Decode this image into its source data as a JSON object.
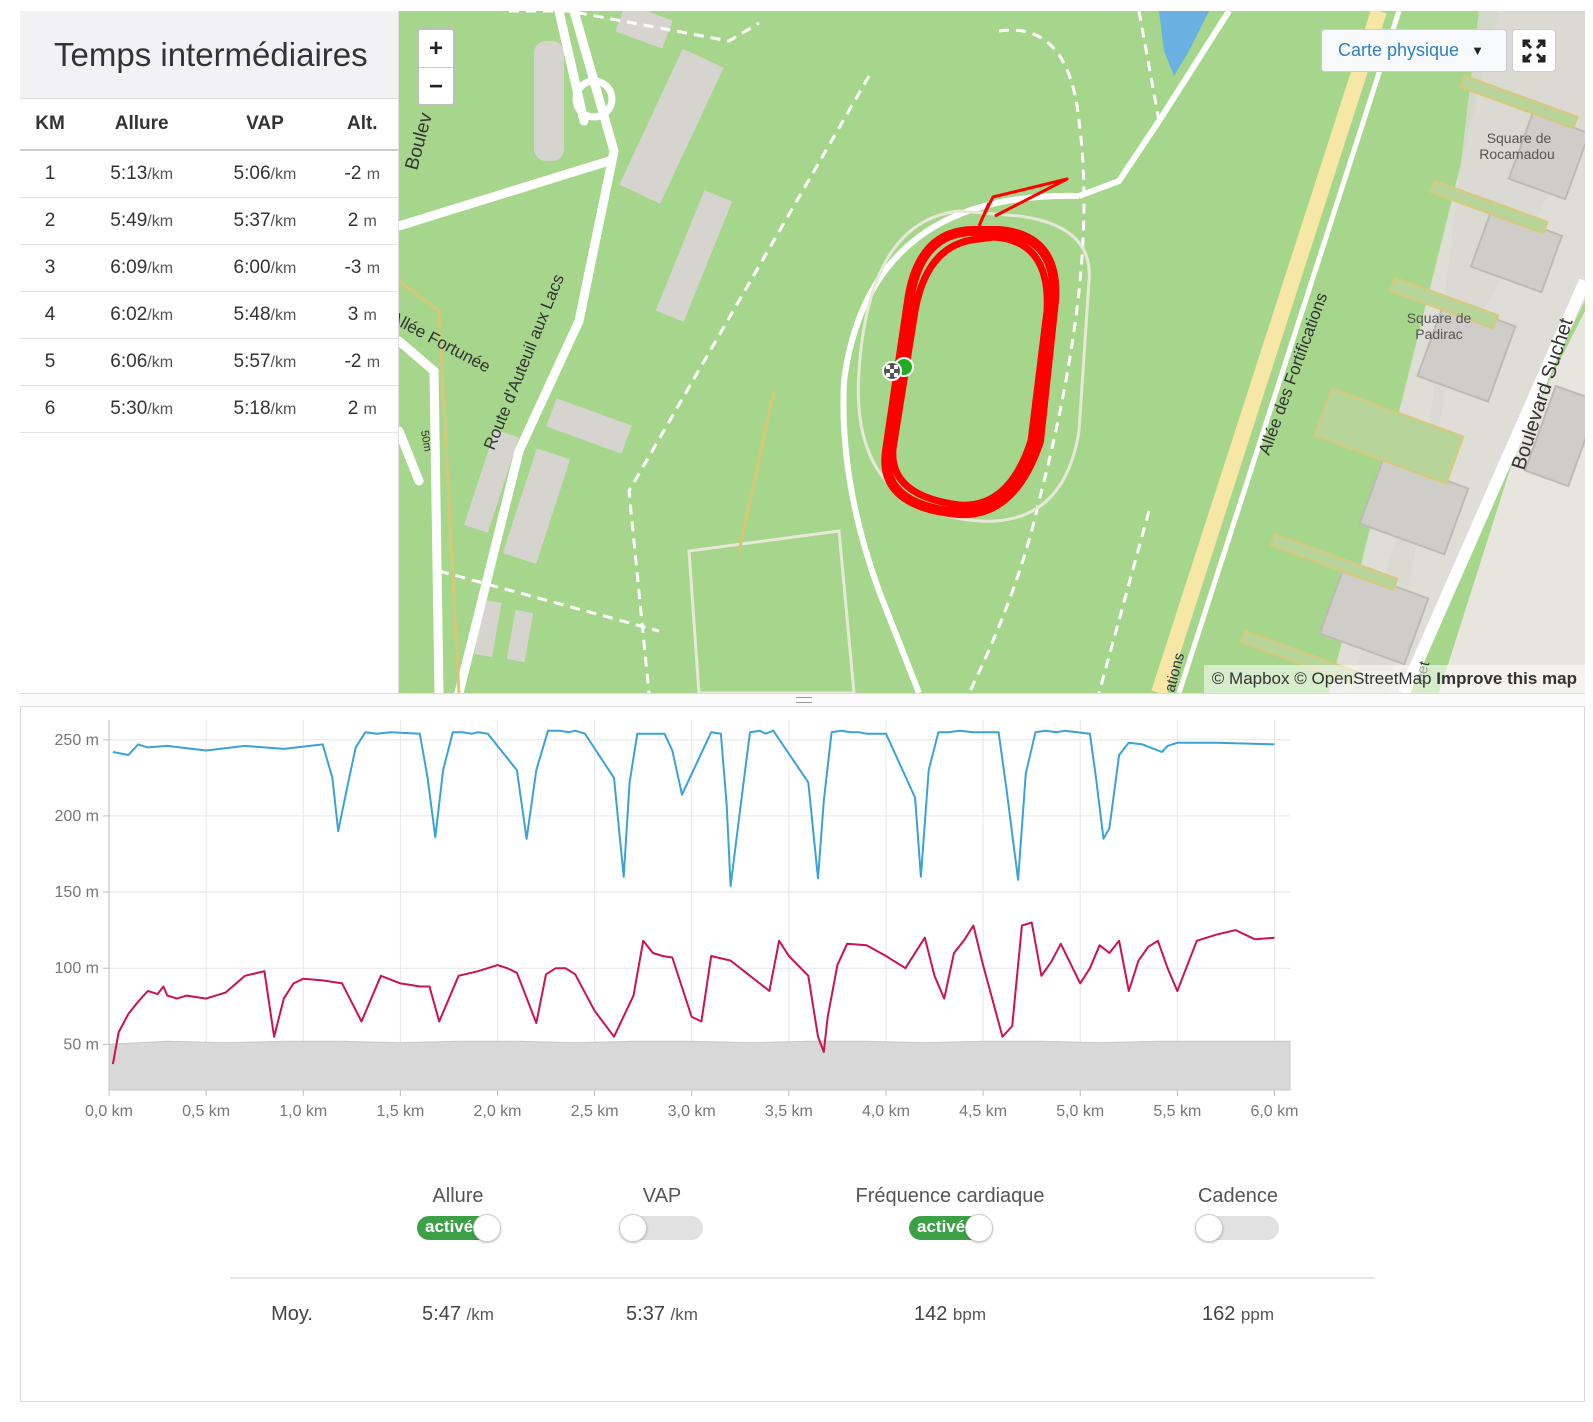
{
  "splits": {
    "title": "Temps intermédiaires",
    "headers": [
      "KM",
      "Allure",
      "VAP",
      "Alt."
    ],
    "rows": [
      {
        "km": "1",
        "allure": "5:13",
        "vap": "5:06",
        "alt": "-2"
      },
      {
        "km": "2",
        "allure": "5:49",
        "vap": "5:37",
        "alt": "2"
      },
      {
        "km": "3",
        "allure": "6:09",
        "vap": "6:00",
        "alt": "-3"
      },
      {
        "km": "4",
        "allure": "6:02",
        "vap": "5:48",
        "alt": "3"
      },
      {
        "km": "5",
        "allure": "6:06",
        "vap": "5:57",
        "alt": "-2"
      },
      {
        "km": "6",
        "allure": "5:30",
        "vap": "5:18",
        "alt": "2"
      }
    ],
    "pace_unit": "/km",
    "alt_unit": "m"
  },
  "map": {
    "zoom_in": "+",
    "zoom_out": "−",
    "layer_label": "Carte physique",
    "layer_caret": "▼",
    "fullscreen_icon": "fullscreen-icon",
    "attribution_prefix": "© Mapbox © OpenStreetMap",
    "attribution_link": "Improve this map",
    "labels": {
      "route": "Route d'Auteuil aux Lacs",
      "allee_fortunee": "Allée Fortunée",
      "fortifications": "Allée des Fortifications",
      "boulevard_suchet": "Boulevard Suchet",
      "square_roc": "Square de Rocamadour",
      "square_padirac": "Square de Padirac",
      "boule": "Boulev",
      "fifty": "50m",
      "ations": "ations",
      "het": "het"
    },
    "track_color": "#ff0000",
    "start_color": "#22aa22"
  },
  "chart_data": {
    "type": "line",
    "y_tick_labels": [
      "250 m",
      "200 m",
      "150 m",
      "100 m",
      "50 m"
    ],
    "x_tick_labels": [
      "0,0 km",
      "0,5 km",
      "1,0 km",
      "1,5 km",
      "2,0 km",
      "2,5 km",
      "3,0 km",
      "3,5 km",
      "4,0 km",
      "4,5 km",
      "5,0 km",
      "5,5 km",
      "6,0 km"
    ],
    "ylim": [
      20,
      263
    ],
    "xlim": [
      0,
      6.08
    ],
    "series": [
      {
        "color": "#3aa3d6",
        "x": [
          0.02,
          0.1,
          0.15,
          0.2,
          0.3,
          0.5,
          0.7,
          0.9,
          1.1,
          1.15,
          1.18,
          1.22,
          1.27,
          1.32,
          1.38,
          1.45,
          1.6,
          1.64,
          1.68,
          1.72,
          1.77,
          1.82,
          1.87,
          1.9,
          1.95,
          2.1,
          2.15,
          2.2,
          2.26,
          2.32,
          2.37,
          2.4,
          2.45,
          2.6,
          2.65,
          2.68,
          2.72,
          2.77,
          2.82,
          2.86,
          2.9,
          2.95,
          3.1,
          3.15,
          3.18,
          3.2,
          3.25,
          3.3,
          3.35,
          3.38,
          3.42,
          3.6,
          3.65,
          3.68,
          3.72,
          3.77,
          3.82,
          3.86,
          3.9,
          4.0,
          4.15,
          4.18,
          4.22,
          4.27,
          4.32,
          4.38,
          4.45,
          4.58,
          4.62,
          4.68,
          4.72,
          4.77,
          4.82,
          4.88,
          4.92,
          5.05,
          5.08,
          5.12,
          5.15,
          5.2,
          5.25,
          5.32,
          5.42,
          5.45,
          5.5,
          5.55,
          5.7,
          6.0
        ],
        "values": [
          242,
          240,
          247,
          245,
          246,
          243,
          246,
          244,
          247,
          225,
          190,
          215,
          245,
          255,
          254,
          255,
          254,
          225,
          186,
          230,
          255,
          255,
          254,
          255,
          254,
          230,
          185,
          230,
          256,
          256,
          255,
          256,
          254,
          225,
          160,
          222,
          254,
          254,
          254,
          254,
          243,
          214,
          255,
          254,
          207,
          154,
          205,
          255,
          256,
          254,
          256,
          222,
          159,
          210,
          255,
          256,
          255,
          255,
          254,
          254,
          212,
          160,
          230,
          255,
          255,
          256,
          255,
          255,
          218,
          158,
          228,
          255,
          256,
          255,
          256,
          254,
          226,
          185,
          192,
          240,
          248,
          247,
          242,
          246,
          248,
          248,
          248,
          247
        ],
        "line": "smooth"
      },
      {
        "color": "#cc1155",
        "x": [
          0.02,
          0.05,
          0.1,
          0.15,
          0.2,
          0.25,
          0.28,
          0.3,
          0.35,
          0.4,
          0.5,
          0.6,
          0.7,
          0.8,
          0.85,
          0.9,
          0.95,
          1.0,
          1.1,
          1.2,
          1.3,
          1.4,
          1.5,
          1.55,
          1.6,
          1.65,
          1.7,
          1.8,
          1.9,
          2.0,
          2.05,
          2.1,
          2.2,
          2.25,
          2.3,
          2.35,
          2.4,
          2.5,
          2.6,
          2.7,
          2.75,
          2.8,
          2.85,
          2.9,
          3.0,
          3.05,
          3.1,
          3.2,
          3.3,
          3.4,
          3.45,
          3.5,
          3.6,
          3.65,
          3.68,
          3.7,
          3.75,
          3.8,
          3.9,
          4.0,
          4.1,
          4.2,
          4.25,
          4.3,
          4.35,
          4.4,
          4.45,
          4.5,
          4.6,
          4.65,
          4.7,
          4.75,
          4.8,
          4.85,
          4.9,
          5.0,
          5.05,
          5.1,
          5.15,
          5.2,
          5.25,
          5.3,
          5.35,
          5.4,
          5.45,
          5.5,
          5.6,
          5.7,
          5.8,
          5.9,
          6.0
        ],
        "values": [
          37,
          58,
          70,
          78,
          85,
          83,
          88,
          82,
          80,
          82,
          80,
          84,
          95,
          98,
          55,
          80,
          90,
          93,
          92,
          90,
          65,
          95,
          90,
          89,
          88,
          88,
          65,
          95,
          98,
          102,
          100,
          97,
          64,
          96,
          100,
          100,
          96,
          72,
          55,
          82,
          118,
          110,
          108,
          107,
          68,
          65,
          108,
          105,
          95,
          85,
          118,
          108,
          95,
          55,
          45,
          68,
          102,
          116,
          115,
          108,
          100,
          120,
          95,
          80,
          110,
          118,
          128,
          102,
          55,
          62,
          128,
          130,
          95,
          104,
          116,
          90,
          100,
          115,
          110,
          118,
          85,
          105,
          114,
          118,
          100,
          85,
          118,
          122,
          125,
          119,
          120
        ]
      },
      {
        "color": "#d8d8d8",
        "fill": true,
        "x": [
          0,
          0.3,
          0.6,
          0.9,
          1.2,
          1.5,
          1.8,
          2.1,
          2.4,
          2.7,
          3.0,
          3.3,
          3.6,
          3.9,
          4.2,
          4.5,
          4.8,
          5.1,
          5.4,
          5.7,
          6.08
        ],
        "values": [
          50,
          52,
          51,
          52,
          52,
          51,
          52,
          52,
          51,
          52,
          52,
          51,
          52,
          52,
          51,
          52,
          52,
          51,
          52,
          52,
          52
        ]
      }
    ],
    "grid": true,
    "legend": "toggles-below"
  },
  "metrics": {
    "toggles": [
      {
        "label": "Allure",
        "state": "on",
        "on_text": "activé"
      },
      {
        "label": "VAP",
        "state": "off",
        "on_text": ""
      },
      {
        "label": "Fréquence cardiaque",
        "state": "on",
        "on_text": "activé"
      },
      {
        "label": "Cadence",
        "state": "off",
        "on_text": ""
      }
    ],
    "avg_label": "Moy.",
    "avg": [
      {
        "value": "5:47",
        "unit": "/km"
      },
      {
        "value": "5:37",
        "unit": "/km"
      },
      {
        "value": "142",
        "unit": "bpm"
      },
      {
        "value": "162",
        "unit": "ppm"
      }
    ]
  }
}
